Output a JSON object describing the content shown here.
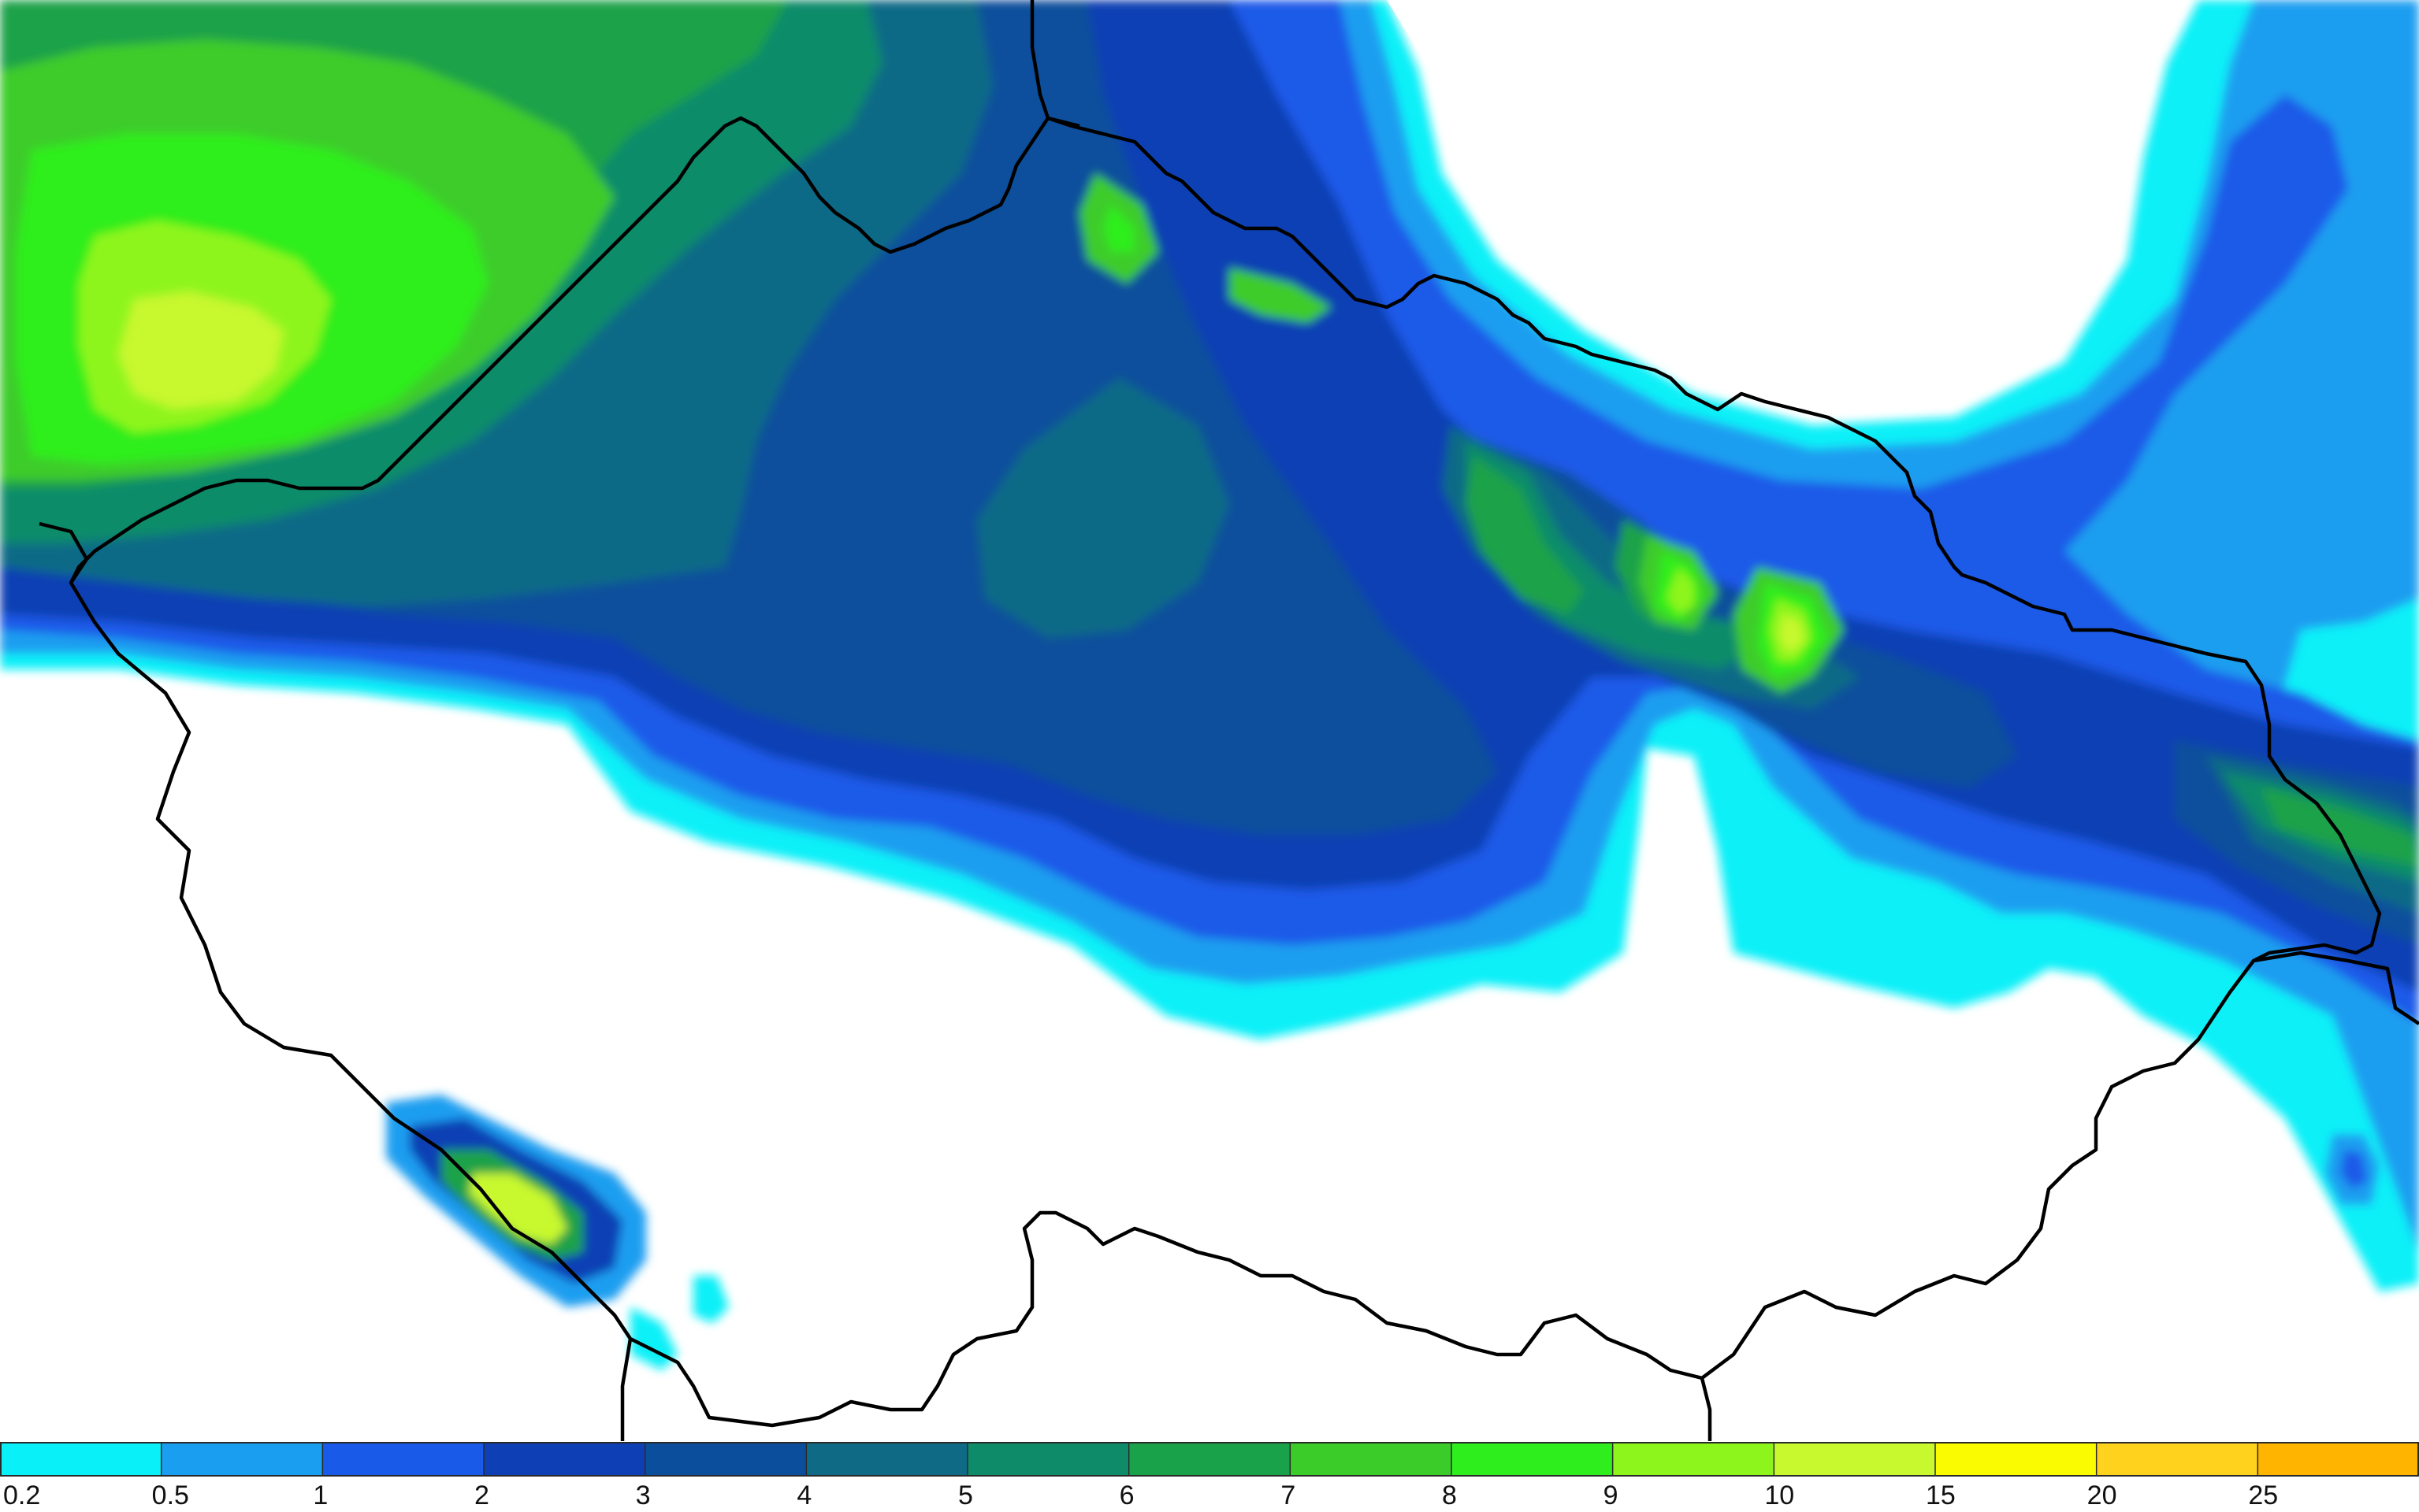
{
  "legend": {
    "colors": [
      "#0af0f8",
      "#1a9ef0",
      "#1a5ae8",
      "#0f3fb4",
      "#0b4f9c",
      "#0f6a86",
      "#0e8c6a",
      "#1aa24a",
      "#3ccc2a",
      "#2eee1e",
      "#8ef51c",
      "#c8f82e",
      "#fafa00",
      "#ffd21e",
      "#ffb400"
    ],
    "labels": [
      "0.2",
      "0.5",
      "1",
      "2",
      "3",
      "4",
      "5",
      "6",
      "7",
      "8",
      "9",
      "10",
      "15",
      "20",
      "25"
    ]
  }
}
